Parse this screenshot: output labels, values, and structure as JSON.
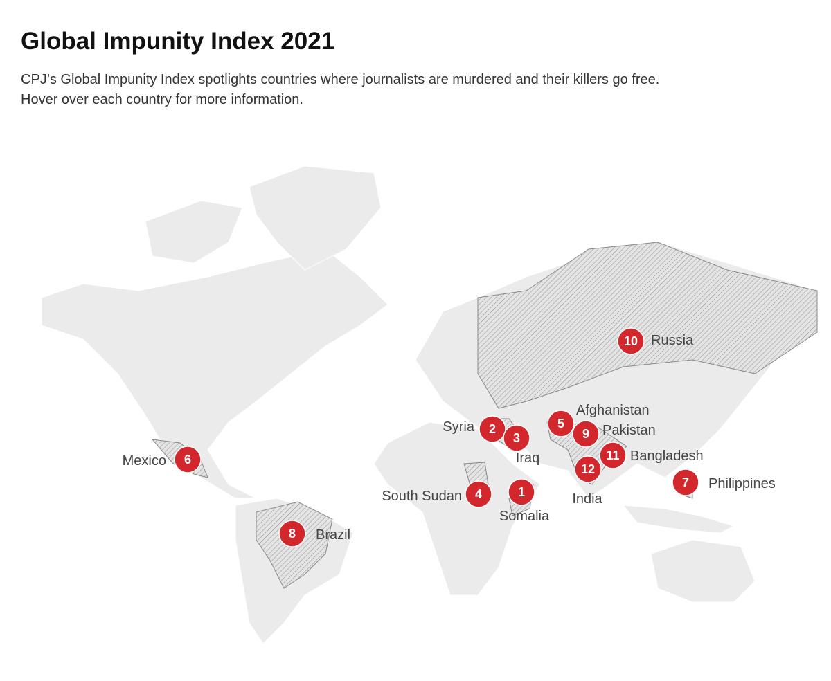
{
  "header": {
    "title": "Global Impunity Index 2021",
    "subtitle": [
      "CPJ’s Global Impunity Index spotlights countries where journalists are murdered and their killers go free.",
      "Hover over each country for more information."
    ]
  },
  "markers": [
    {
      "rank": 1,
      "country": "Somalia"
    },
    {
      "rank": 2,
      "country": "Syria"
    },
    {
      "rank": 3,
      "country": "Iraq"
    },
    {
      "rank": 4,
      "country": "South Sudan"
    },
    {
      "rank": 5,
      "country": "Afghanistan"
    },
    {
      "rank": 6,
      "country": "Mexico"
    },
    {
      "rank": 7,
      "country": "Philippines"
    },
    {
      "rank": 8,
      "country": "Brazil"
    },
    {
      "rank": 9,
      "country": "Pakistan"
    },
    {
      "rank": 10,
      "country": "Russia"
    },
    {
      "rank": 11,
      "country": "Bangladesh"
    },
    {
      "rank": 12,
      "country": "India"
    }
  ]
}
